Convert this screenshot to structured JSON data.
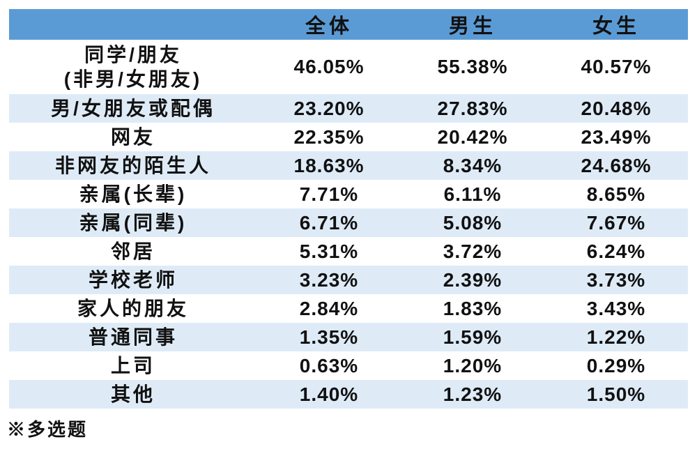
{
  "chart_data": {
    "type": "table",
    "columns": [
      "",
      "全体",
      "男生",
      "女生"
    ],
    "rows": [
      {
        "label": "同学/朋友\n(非男/女朋友)",
        "values": [
          "46.05%",
          "55.38%",
          "40.57%"
        ]
      },
      {
        "label": "男/女朋友或配偶",
        "values": [
          "23.20%",
          "27.83%",
          "20.48%"
        ]
      },
      {
        "label": "网友",
        "values": [
          "22.35%",
          "20.42%",
          "23.49%"
        ]
      },
      {
        "label": "非网友的陌生人",
        "values": [
          "18.63%",
          "8.34%",
          "24.68%"
        ]
      },
      {
        "label": "亲属(长辈)",
        "values": [
          "7.71%",
          "6.11%",
          "8.65%"
        ]
      },
      {
        "label": "亲属(同辈)",
        "values": [
          "6.71%",
          "5.08%",
          "7.67%"
        ]
      },
      {
        "label": "邻居",
        "values": [
          "5.31%",
          "3.72%",
          "6.24%"
        ]
      },
      {
        "label": "学校老师",
        "values": [
          "3.23%",
          "2.39%",
          "3.73%"
        ]
      },
      {
        "label": "家人的朋友",
        "values": [
          "2.84%",
          "1.83%",
          "3.43%"
        ]
      },
      {
        "label": "普通同事",
        "values": [
          "1.35%",
          "1.59%",
          "1.22%"
        ]
      },
      {
        "label": "上司",
        "values": [
          "0.63%",
          "1.20%",
          "0.29%"
        ]
      },
      {
        "label": "其他",
        "values": [
          "1.40%",
          "1.23%",
          "1.50%"
        ]
      }
    ],
    "footnote": "※多选题",
    "layout": {
      "legend_position": "none",
      "grid": false,
      "banded_rows": true
    }
  },
  "colors": {
    "header_bg": "#5B9BD5",
    "band_bg": "#DEEBF7",
    "text": "#111111"
  }
}
